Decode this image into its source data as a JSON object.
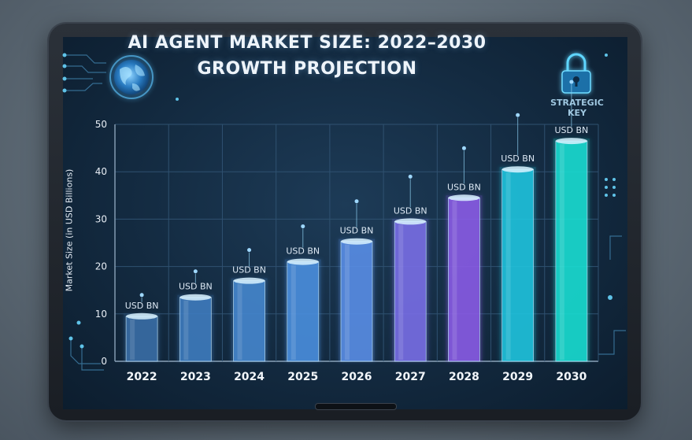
{
  "chart_data": {
    "type": "bar",
    "title": "AI AGENT MARKET SIZE: 2022–2030 GROWTH PROJECTION",
    "ylabel": "Market Size (in USD Billions)",
    "xlabel": "",
    "ylim": [
      0,
      50
    ],
    "yticks": [
      "0",
      "10",
      "20",
      "30",
      "40",
      "50"
    ],
    "categories": [
      "2022",
      "2023",
      "2024",
      "2025",
      "2026",
      "2027",
      "2028",
      "2029",
      "2030"
    ],
    "values": [
      9.5,
      13.5,
      17,
      21,
      25.3,
      29.5,
      34.5,
      40.5,
      46.5
    ],
    "data_labels": [
      "USD BN",
      "USD BN",
      "USD BN",
      "USD BN",
      "USD BN",
      "USD BN",
      "USD BN",
      "USD BN",
      "USD BN"
    ],
    "colors": [
      "#3a6fa8",
      "#3f7dc0",
      "#4688d0",
      "#4b90e0",
      "#5a8fe8",
      "#7a6fe8",
      "#8b5ce8",
      "#1fc6e0",
      "#19e0d4"
    ],
    "grid": true,
    "annotation": "STRATEGIC KEY"
  },
  "icons": [
    "globe-icon",
    "lock-icon"
  ]
}
